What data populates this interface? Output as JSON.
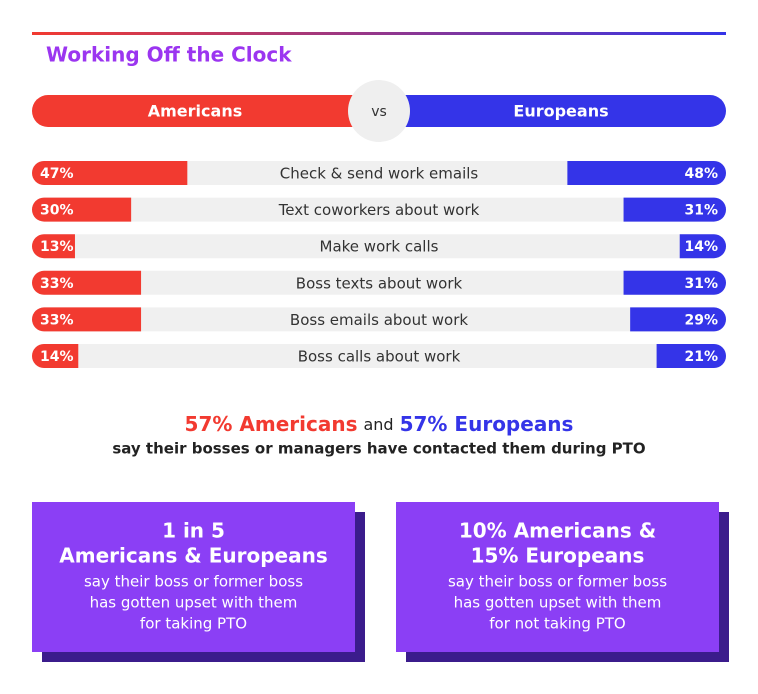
{
  "chart_data": {
    "type": "butterfly",
    "title": "Working Off the Clock",
    "separator": "vs",
    "categories": [
      "Check & send work emails",
      "Text coworkers about work",
      "Make work calls",
      "Boss texts about work",
      "Boss emails about work",
      "Boss calls about work"
    ],
    "series": [
      {
        "name": "Americans",
        "color": "#f23a30",
        "values": [
          47,
          30,
          13,
          33,
          33,
          14
        ],
        "value_labels": [
          "47%",
          "30%",
          "13%",
          "33%",
          "33%",
          "14%"
        ]
      },
      {
        "name": "Europeans",
        "color": "#3434e8",
        "values": [
          48,
          31,
          14,
          31,
          29,
          21
        ],
        "value_labels": [
          "48%",
          "31%",
          "14%",
          "31%",
          "29%",
          "21%"
        ]
      }
    ],
    "xlim": [
      0,
      105
    ]
  },
  "summary": {
    "americans": "57% Americans",
    "joiner": "and",
    "europeans": "57% Europeans",
    "subtitle": "say their bosses or managers have contacted them during PTO"
  },
  "cards": [
    {
      "heading": [
        "1 in 5",
        "Americans & Europeans"
      ],
      "body": [
        "say their boss or former boss",
        "has gotten upset with them",
        "for taking PTO"
      ]
    },
    {
      "heading": [
        "10% Americans &",
        "15% Europeans"
      ],
      "body": [
        "say their boss or former boss",
        "has gotten upset with them",
        "for not taking PTO"
      ]
    }
  ]
}
